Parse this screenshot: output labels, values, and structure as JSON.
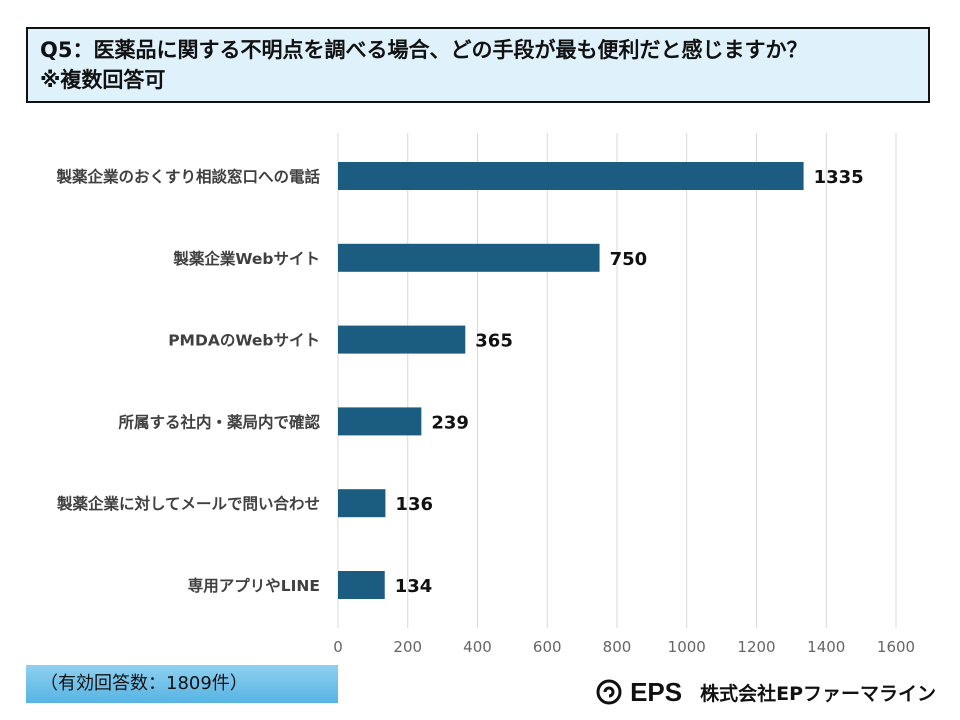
{
  "title": {
    "line1": "Q5：医薬品に関する不明点を調べる場合、どの手段が最も便利だと感じますか？",
    "line2": "※複数回答可"
  },
  "chart_data": {
    "type": "bar",
    "orientation": "horizontal",
    "categories": [
      "製薬企業のおくすり相談窓口への電話",
      "製薬企業Webサイト",
      "PMDAのWebサイト",
      "所属する社内・薬局内で確認",
      "製薬企業に対してメールで問い合わせ",
      "専用アプリやLINE"
    ],
    "values": [
      1335,
      750,
      365,
      239,
      136,
      134
    ],
    "xlim": [
      0,
      1600
    ],
    "ticks": [
      0,
      200,
      400,
      600,
      800,
      1000,
      1200,
      1400,
      1600
    ],
    "grid": true,
    "bar_color": "#1a5d80",
    "grid_color": "#d9d9d9"
  },
  "footnote": "（有効回答数：1809件）",
  "brand": {
    "logo_text": "EPS",
    "company": "株式会社EPファーマライン"
  }
}
